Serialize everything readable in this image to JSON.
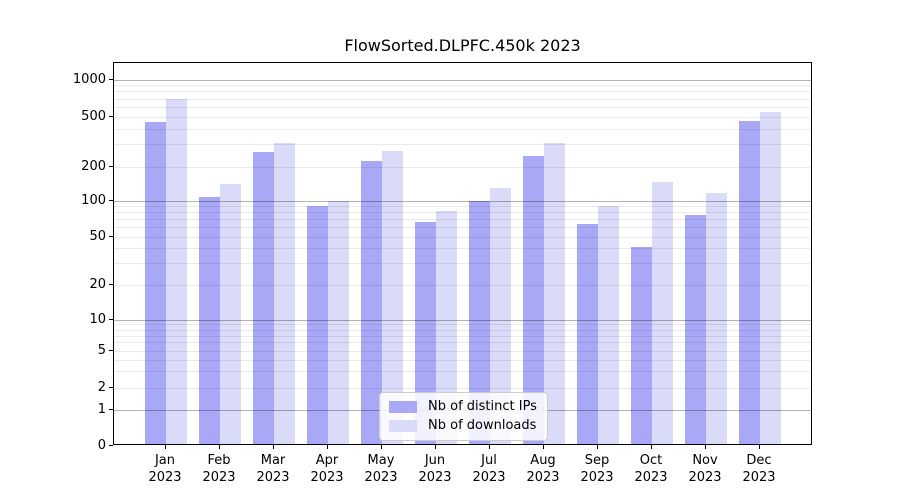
{
  "chart_data": {
    "type": "bar",
    "title": "FlowSorted.DLPFC.450k 2023",
    "categories": [
      "Jan",
      "Feb",
      "Mar",
      "Apr",
      "May",
      "Jun",
      "Jul",
      "Aug",
      "Sep",
      "Oct",
      "Nov",
      "Dec"
    ],
    "x_tick_year": "2023",
    "series": [
      {
        "name": "Nb of distinct IPs",
        "color": "#a8a8f6",
        "values": [
          440,
          105,
          255,
          88,
          215,
          64,
          97,
          235,
          62,
          40,
          73,
          450
        ]
      },
      {
        "name": "Nb of downloads",
        "color": "#dadaf9",
        "values": [
          680,
          135,
          300,
          97,
          260,
          80,
          124,
          300,
          88,
          142,
          114,
          525
        ]
      }
    ],
    "y_ticks": [
      0,
      1,
      2,
      5,
      10,
      20,
      50,
      100,
      200,
      500,
      1000
    ],
    "y_scale": "symlog",
    "xlabel": "",
    "ylabel": "",
    "grid": "horizontal major and minor log gridlines, drawn above bars",
    "legend_position": "lower center"
  },
  "colors": {
    "major_grid": "rgba(0,0,0,0.30)",
    "minor_grid": "rgba(0,0,0,0.08)",
    "axis_line": "#000000",
    "legend_border": "#cccccc",
    "legend_background": "rgba(255,255,255,0.85)"
  }
}
